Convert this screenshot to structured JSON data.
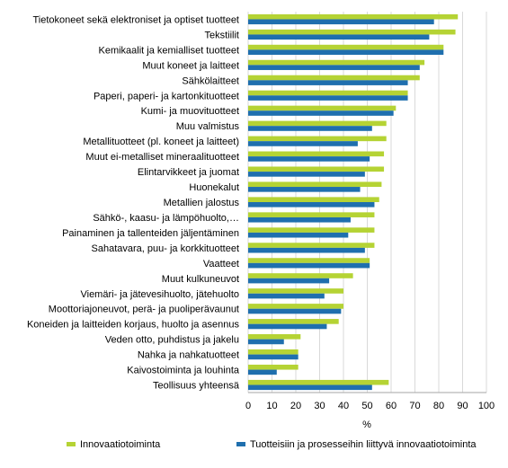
{
  "chart_data": {
    "type": "bar",
    "orientation": "horizontal",
    "categories": [
      "Tietokoneet sekä elektroniset ja optiset tuotteet",
      "Tekstiilit",
      "Kemikaalit ja kemialliset tuotteet",
      "Muut koneet ja laitteet",
      "Sähkölaitteet",
      "Paperi, paperi- ja kartonkituotteet",
      "Kumi- ja muovituotteet",
      "Muu valmistus",
      "Metallituotteet (pl. koneet ja laitteet)",
      "Muut ei-metalliset mineraalituotteet",
      "Elintarvikkeet ja juomat",
      "Huonekalut",
      "Metallien jalostus",
      "Sähkö-, kaasu- ja lämpöhuolto,…",
      "Painaminen ja tallenteiden jäljentäminen",
      "Sahatavara, puu- ja korkkituotteet",
      "Vaatteet",
      "Muut kulkuneuvot",
      "Viemäri- ja jätevesihuolto, jätehuolto",
      "Moottoriajoneuvot, perä- ja puoliperävaunut",
      "Koneiden ja laitteiden korjaus, huolto ja asennus",
      "Veden otto, puhdistus ja jakelu",
      "Nahka ja nahkatuotteet",
      "Kaivostoiminta ja louhinta",
      "Teollisuus yhteensä"
    ],
    "series": [
      {
        "name": "Innovaatiotoiminta",
        "color": "#b5d334",
        "values": [
          88,
          87,
          82,
          74,
          72,
          67,
          62,
          58,
          58,
          57,
          57,
          56,
          55,
          53,
          53,
          53,
          51,
          44,
          40,
          40,
          38,
          22,
          21,
          21,
          59
        ]
      },
      {
        "name": "Tuotteisiin ja prosesseihin liittyvä innovaatiotoiminta",
        "color": "#1f6fae",
        "values": [
          78,
          76,
          82,
          72,
          67,
          67,
          61,
          52,
          46,
          51,
          49,
          47,
          53,
          43,
          42,
          49,
          51,
          34,
          32,
          39,
          33,
          15,
          21,
          12,
          52
        ]
      }
    ],
    "xlabel": "%",
    "xlim": [
      0,
      100
    ],
    "xticks": [
      "0",
      "10",
      "20",
      "30",
      "40",
      "50",
      "60",
      "70",
      "80",
      "90",
      "100"
    ],
    "grid": "vertical",
    "legend": "bottom"
  }
}
